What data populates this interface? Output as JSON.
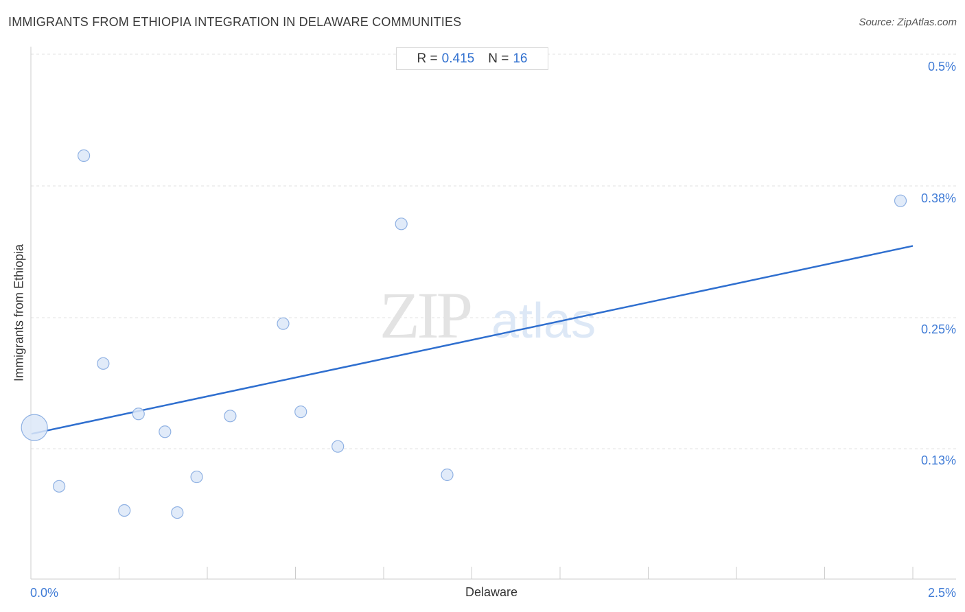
{
  "header": {
    "title": "IMMIGRANTS FROM ETHIOPIA INTEGRATION IN DELAWARE COMMUNITIES",
    "source": "Source: ZipAtlas.com"
  },
  "stats": {
    "r_label": "R =",
    "r_value": "0.415",
    "n_label": "N =",
    "n_value": "16"
  },
  "watermark": {
    "zip": "ZIP",
    "atlas": "atlas"
  },
  "colors": {
    "accent": "#2f6fcf",
    "point_fill": "#dce8f8",
    "point_stroke": "#8fb1e3",
    "grid": "#e2e2e2",
    "axis": "#cccccc"
  },
  "chart_data": {
    "type": "scatter",
    "title": "IMMIGRANTS FROM ETHIOPIA INTEGRATION IN DELAWARE COMMUNITIES",
    "xlabel": "Delaware",
    "ylabel": "Immigrants from Ethiopia",
    "xlim": [
      0,
      2.5
    ],
    "ylim": [
      0,
      0.5
    ],
    "x_tick_labels": [
      "0.0%",
      "2.5%"
    ],
    "y_ticks": [
      0.125,
      0.25,
      0.375,
      0.5
    ],
    "y_tick_labels": [
      "0.13%",
      "0.25%",
      "0.38%",
      "0.5%"
    ],
    "grid": true,
    "points": [
      {
        "x": 0.01,
        "y": 0.145,
        "size": "large"
      },
      {
        "x": 0.08,
        "y": 0.089,
        "size": "normal"
      },
      {
        "x": 0.15,
        "y": 0.404,
        "size": "normal"
      },
      {
        "x": 0.205,
        "y": 0.206,
        "size": "normal"
      },
      {
        "x": 0.265,
        "y": 0.066,
        "size": "normal"
      },
      {
        "x": 0.305,
        "y": 0.158,
        "size": "normal"
      },
      {
        "x": 0.38,
        "y": 0.141,
        "size": "normal"
      },
      {
        "x": 0.415,
        "y": 0.064,
        "size": "normal"
      },
      {
        "x": 0.47,
        "y": 0.098,
        "size": "normal"
      },
      {
        "x": 0.565,
        "y": 0.156,
        "size": "normal"
      },
      {
        "x": 0.715,
        "y": 0.244,
        "size": "normal"
      },
      {
        "x": 0.765,
        "y": 0.16,
        "size": "normal"
      },
      {
        "x": 0.87,
        "y": 0.127,
        "size": "normal"
      },
      {
        "x": 1.05,
        "y": 0.339,
        "size": "normal"
      },
      {
        "x": 1.18,
        "y": 0.1,
        "size": "normal"
      },
      {
        "x": 2.465,
        "y": 0.361,
        "size": "normal"
      }
    ],
    "trendline": {
      "x": [
        0.0,
        2.5
      ],
      "y": [
        0.139,
        0.318
      ]
    }
  }
}
